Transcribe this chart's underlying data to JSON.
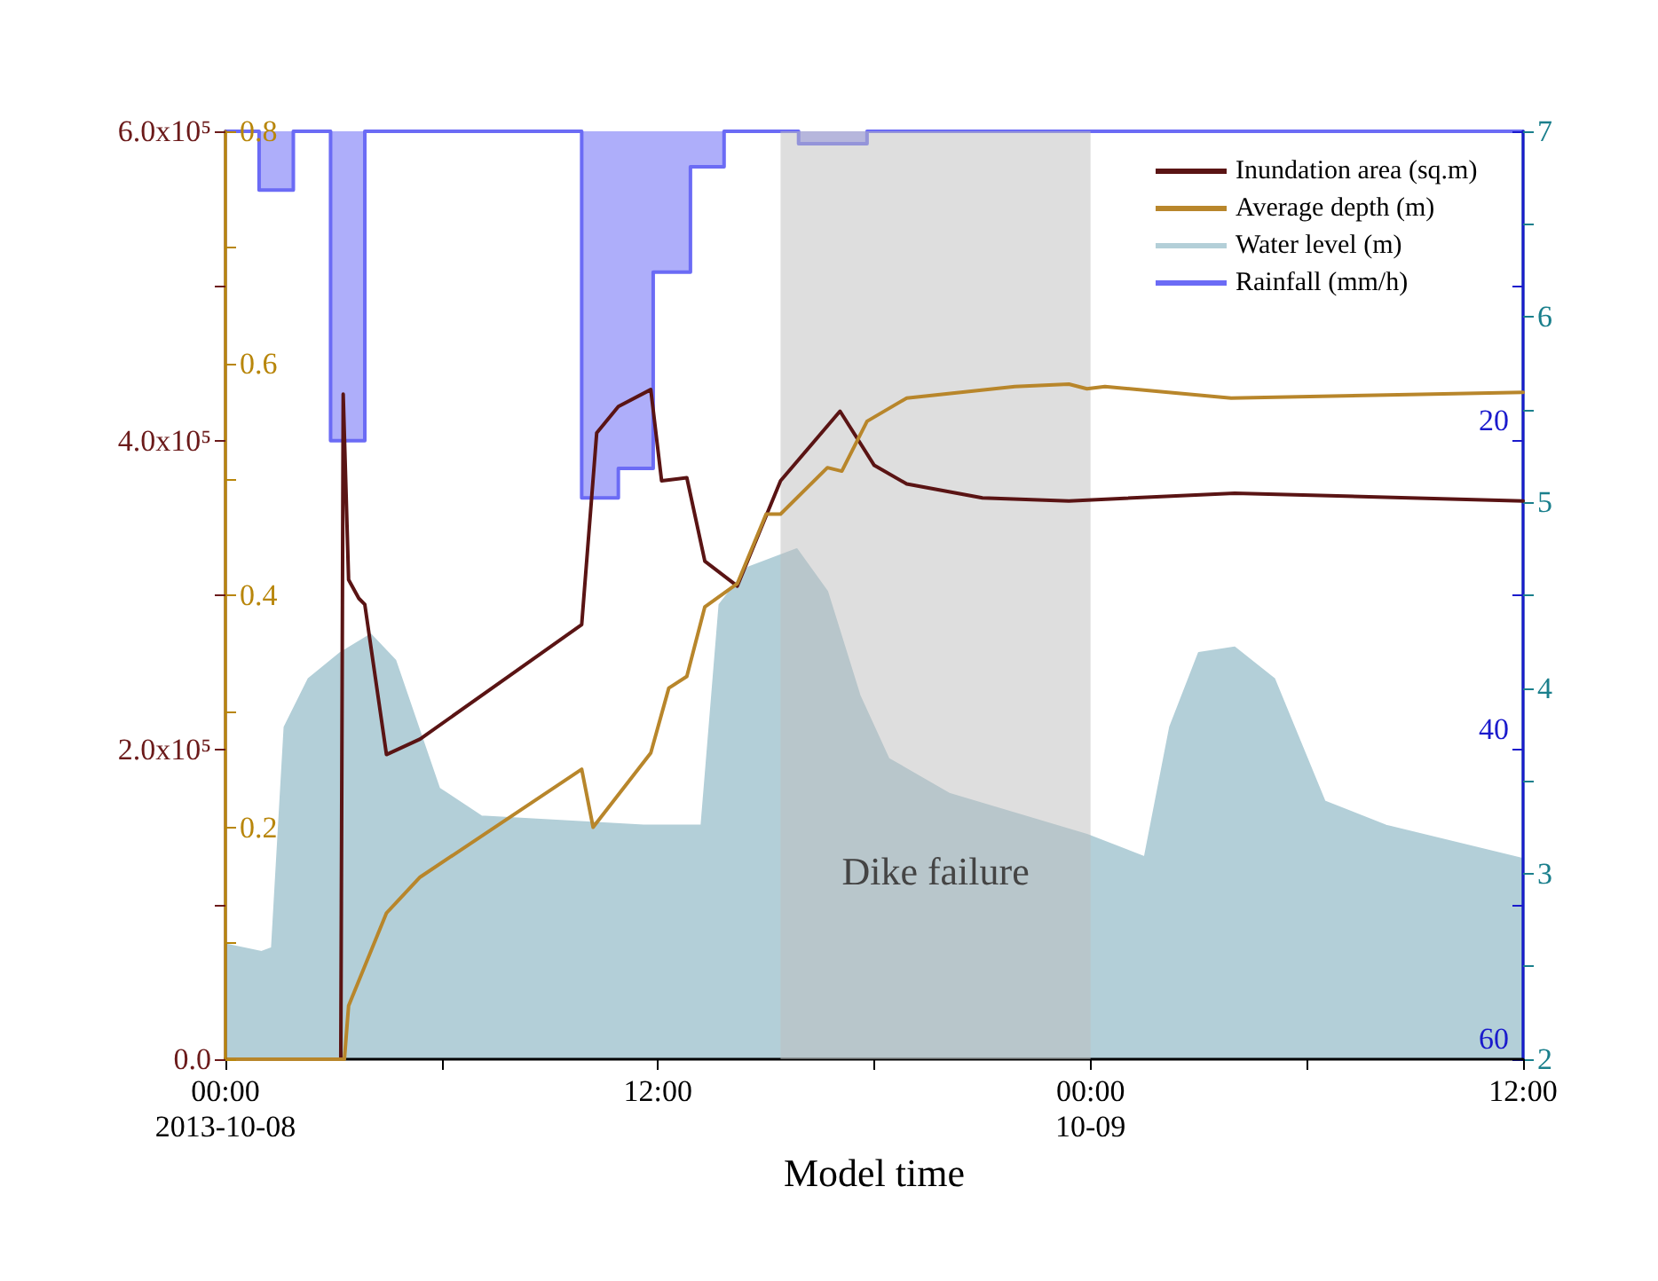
{
  "chart_data": [
    {
      "type": "line",
      "xlabel": "Model time",
      "xlim": [
        "2013-10-08T00:00",
        "2013-10-09T12:00"
      ],
      "xticks": [
        {
          "value": "2013-10-08T00:00",
          "label": "00:00\n2013-10-08"
        },
        {
          "value": "2013-10-08T06:00",
          "label": null
        },
        {
          "value": "2013-10-08T12:00",
          "label": "12:00"
        },
        {
          "value": "2013-10-08T18:00",
          "label": null
        },
        {
          "value": "2013-10-09T00:00",
          "label": "00:00\n10-09"
        },
        {
          "value": "2013-10-09T06:00",
          "label": null
        },
        {
          "value": "2013-10-09T12:00",
          "label": "12:00"
        }
      ],
      "ylim": [
        0,
        600000
      ],
      "yticks": [
        {
          "value": 0,
          "label": "0.0"
        },
        {
          "value": 100000,
          "label": null
        },
        {
          "value": 200000,
          "label": "2.0x10⁵"
        },
        {
          "value": 300000,
          "label": null
        },
        {
          "value": 400000,
          "label": "4.0x10⁵"
        },
        {
          "value": 500000,
          "label": null
        },
        {
          "value": 600000,
          "label": "6.0x10⁵"
        }
      ],
      "y2lim": [
        0,
        0.8
      ],
      "y2ticks": [
        {
          "value": 0,
          "label": null
        },
        {
          "value": 0.1,
          "label": null
        },
        {
          "value": 0.2,
          "label": "0.2"
        },
        {
          "value": 0.3,
          "label": null
        },
        {
          "value": 0.4,
          "label": "0.4"
        },
        {
          "value": 0.5,
          "label": null
        },
        {
          "value": 0.6,
          "label": "0.6"
        },
        {
          "value": 0.7,
          "label": null
        },
        {
          "value": 0.8,
          "label": "0.8"
        }
      ],
      "legend": "top right",
      "bands": [
        {
          "axis": "x",
          "from": "2013-10-08T15:24",
          "to": "2013-10-09T00:00",
          "label": "Dike failure",
          "color": "#bdbdbd"
        }
      ],
      "series": [
        {
          "name": "Inundation area (sq.m)",
          "color": "#5a1414",
          "x": [
            "2013-10-08T00:00",
            "2013-10-08T03:12",
            "2013-10-08T03:16",
            "2013-10-08T03:25",
            "2013-10-08T03:42",
            "2013-10-08T03:52",
            "2013-10-08T04:28",
            "2013-10-08T05:24",
            "2013-10-08T09:53",
            "2013-10-08T10:18",
            "2013-10-08T10:54",
            "2013-10-08T11:48",
            "2013-10-08T12:06",
            "2013-10-08T12:48",
            "2013-10-08T13:18",
            "2013-10-08T14:12",
            "2013-10-08T15:24",
            "2013-10-08T17:03",
            "2013-10-08T18:00",
            "2013-10-08T18:54",
            "2013-10-08T21:00",
            "2013-10-08T23:24",
            "2013-10-09T04:00",
            "2013-10-09T12:00"
          ],
          "values": [
            0,
            0,
            430000,
            310000,
            298000,
            294000,
            197000,
            207000,
            281000,
            405000,
            422000,
            433000,
            374000,
            376000,
            322000,
            306000,
            374000,
            419000,
            384000,
            372000,
            363000,
            361000,
            366000,
            361000
          ]
        },
        {
          "name": "Average depth (m)",
          "axis": "y2",
          "color": "#b8862b",
          "x": [
            "2013-10-08T00:00",
            "2013-10-08T03:18",
            "2013-10-08T03:25",
            "2013-10-08T04:28",
            "2013-10-08T05:24",
            "2013-10-08T09:53",
            "2013-10-08T10:12",
            "2013-10-08T11:48",
            "2013-10-08T12:18",
            "2013-10-08T12:48",
            "2013-10-08T13:18",
            "2013-10-08T14:12",
            "2013-10-08T15:00",
            "2013-10-08T15:24",
            "2013-10-08T16:42",
            "2013-10-08T17:06",
            "2013-10-08T17:48",
            "2013-10-08T18:54",
            "2013-10-08T21:54",
            "2013-10-08T23:24",
            "2013-10-08T23:54",
            "2013-10-09T00:24",
            "2013-10-09T03:54",
            "2013-10-09T12:00"
          ],
          "values": [
            0,
            0,
            0.046,
            0.126,
            0.157,
            0.25,
            0.2,
            0.264,
            0.32,
            0.33,
            0.39,
            0.41,
            0.47,
            0.47,
            0.51,
            0.507,
            0.55,
            0.57,
            0.58,
            0.582,
            0.578,
            0.58,
            0.57,
            0.575
          ]
        }
      ]
    },
    {
      "type": "area",
      "legend": "top right",
      "tick_labels": "y",
      "xlim": [
        "2013-10-08T00:00",
        "2013-10-09T12:00"
      ],
      "ylim": [
        2,
        7
      ],
      "yticks": [
        {
          "value": 2,
          "label": "2"
        },
        {
          "value": 2.5,
          "label": null
        },
        {
          "value": 3,
          "label": "3"
        },
        {
          "value": 3.5,
          "label": null
        },
        {
          "value": 4,
          "label": "4"
        },
        {
          "value": 4.5,
          "label": null
        },
        {
          "value": 5,
          "label": "5"
        },
        {
          "value": 5.5,
          "label": null
        },
        {
          "value": 6,
          "label": "6"
        },
        {
          "value": 6.5,
          "label": null
        },
        {
          "value": 7,
          "label": "7"
        }
      ],
      "y2lim": [
        60,
        0
      ],
      "y2ticks": [
        {
          "value": 0,
          "label": null
        },
        {
          "value": 10,
          "label": null
        },
        {
          "value": 20,
          "label": "20"
        },
        {
          "value": 30,
          "label": null
        },
        {
          "value": 40,
          "label": "40"
        },
        {
          "value": 50,
          "label": null
        },
        {
          "value": 60,
          "label": "60"
        }
      ],
      "series": [
        {
          "name": "Water level (m)",
          "color": "#b3cfd8",
          "x": [
            "2013-10-08T00:00",
            "2013-10-08T01:00",
            "2013-10-08T01:17",
            "2013-10-08T01:38",
            "2013-10-08T02:18",
            "2013-10-08T03:11",
            "2013-10-08T04:02",
            "2013-10-08T04:43",
            "2013-10-08T05:56",
            "2013-10-08T07:06",
            "2013-10-08T11:36",
            "2013-10-08T13:12",
            "2013-10-08T13:42",
            "2013-10-08T14:30",
            "2013-10-08T15:51",
            "2013-10-08T16:42",
            "2013-10-08T17:36",
            "2013-10-08T18:24",
            "2013-10-08T20:06",
            "2013-10-08T23:54",
            "2013-10-09T01:30",
            "2013-10-09T02:12",
            "2013-10-09T03:00",
            "2013-10-09T04:00",
            "2013-10-09T05:06",
            "2013-10-09T06:30",
            "2013-10-09T08:12",
            "2013-10-09T12:00"
          ],
          "values": [
            2.62,
            2.58,
            2.6,
            3.79,
            4.05,
            4.19,
            4.29,
            4.15,
            3.46,
            3.31,
            3.26,
            3.26,
            4.45,
            4.65,
            4.75,
            4.52,
            3.96,
            3.62,
            3.43,
            3.21,
            3.09,
            3.79,
            4.19,
            4.22,
            4.05,
            3.39,
            3.26,
            3.08
          ]
        },
        {
          "name": "Rainfall (mm/h)",
          "type": "step",
          "axis": "y2",
          "color": "#6b6bf5",
          "x": [
            "2013-10-08T00:00",
            "2013-10-08T00:56",
            "2013-10-08T01:53",
            "2013-10-08T02:55",
            "2013-10-08T03:52",
            "2013-10-08T09:53",
            "2013-10-08T10:54",
            "2013-10-08T11:52",
            "2013-10-08T12:54",
            "2013-10-08T13:50",
            "2013-10-08T15:54",
            "2013-10-08T17:48",
            "2013-10-09T12:00"
          ],
          "values": [
            0,
            3.8,
            0,
            20,
            0,
            23.7,
            21.8,
            9.1,
            2.3,
            0,
            0.8,
            0,
            0
          ]
        }
      ]
    }
  ]
}
